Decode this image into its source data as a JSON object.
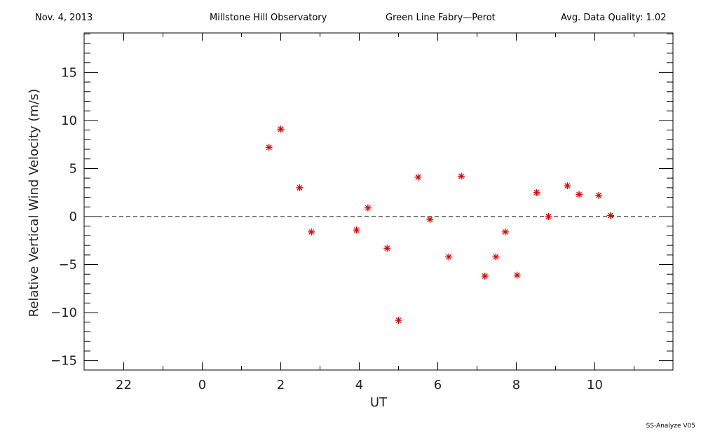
{
  "header": {
    "date": "Nov. 4, 2013",
    "observatory": "Millstone Hill Observatory",
    "instrument": "Green Line Fabry—Perot",
    "quality": "Avg. Data Quality: 1.02"
  },
  "footer": {
    "software": "SS-Analyze V05"
  },
  "chart_data": {
    "type": "scatter",
    "title": "",
    "xlabel": "UT",
    "ylabel": "Relative Vertical Wind Velocity (m/s)",
    "xlim": [
      -27,
      35.8
    ],
    "ylim": [
      -16,
      19
    ],
    "x_major_ticks": [
      {
        "x": 22,
        "label": "22"
      },
      {
        "x": 24,
        "label": "0"
      },
      {
        "x": 26,
        "label": "2"
      },
      {
        "x": 28,
        "label": "4"
      },
      {
        "x": 30,
        "label": "6"
      },
      {
        "x": 32,
        "label": "8"
      },
      {
        "x": 34,
        "label": "10"
      }
    ],
    "y_major_ticks": [
      {
        "y": -15,
        "label": "−15"
      },
      {
        "y": -10,
        "label": "−10"
      },
      {
        "y": -5,
        "label": "−5"
      },
      {
        "y": 0,
        "label": "0"
      },
      {
        "y": 5,
        "label": "5"
      },
      {
        "y": 10,
        "label": "10"
      },
      {
        "y": 15,
        "label": "15"
      }
    ],
    "zero_line": true,
    "marker": "asterisk",
    "marker_color": "#e00000",
    "series": [
      {
        "points": [
          {
            "x": 25.7,
            "y": 7.2
          },
          {
            "x": 26.0,
            "y": 9.1
          },
          {
            "x": 26.48,
            "y": 3.0
          },
          {
            "x": 26.78,
            "y": -1.6
          },
          {
            "x": 27.93,
            "y": -1.4
          },
          {
            "x": 28.22,
            "y": 0.9
          },
          {
            "x": 28.71,
            "y": -3.3
          },
          {
            "x": 29.0,
            "y": -10.8
          },
          {
            "x": 29.5,
            "y": 4.1
          },
          {
            "x": 29.8,
            "y": -0.3
          },
          {
            "x": 30.28,
            "y": -4.2
          },
          {
            "x": 30.6,
            "y": 4.2
          },
          {
            "x": 31.2,
            "y": -6.2
          },
          {
            "x": 31.48,
            "y": -4.2
          },
          {
            "x": 31.72,
            "y": -1.6
          },
          {
            "x": 32.02,
            "y": -6.1
          },
          {
            "x": 32.52,
            "y": 2.5
          },
          {
            "x": 32.82,
            "y": 0.0
          },
          {
            "x": 33.3,
            "y": 3.2
          },
          {
            "x": 33.6,
            "y": 2.3
          },
          {
            "x": 34.1,
            "y": 2.2
          },
          {
            "x": 34.4,
            "y": 0.1
          }
        ]
      }
    ]
  }
}
